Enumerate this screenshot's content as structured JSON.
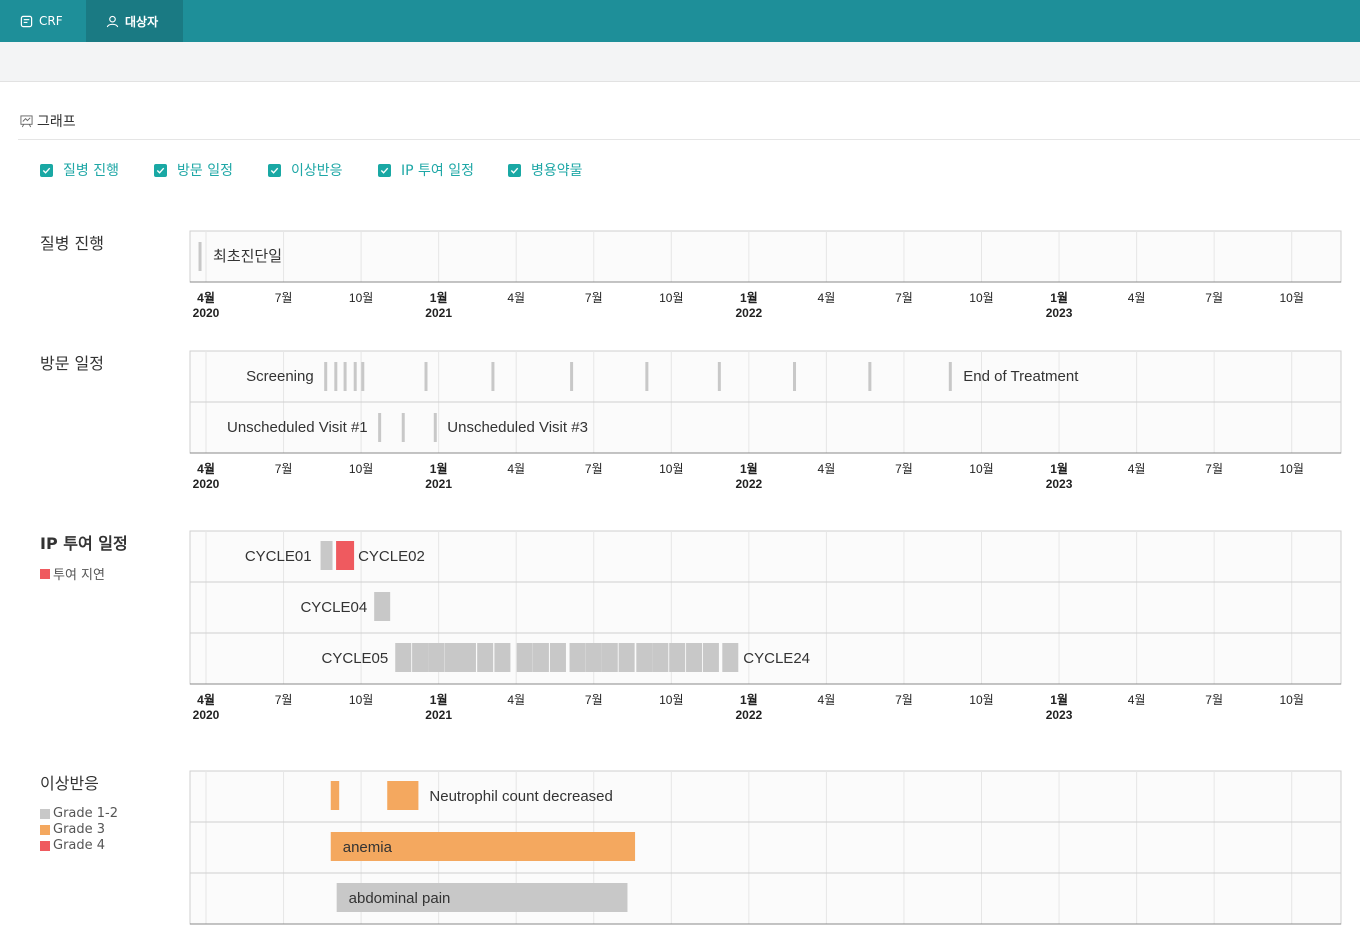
{
  "tabs": [
    {
      "label": "CRF",
      "icon": "form-icon"
    },
    {
      "label": "대상자",
      "icon": "user-icon",
      "active": true
    }
  ],
  "section": {
    "title": "그래프",
    "icon": "chart-icon"
  },
  "filters": [
    {
      "label": "질병 진행",
      "checked": true
    },
    {
      "label": "방문 일정",
      "checked": true
    },
    {
      "label": "이상반응",
      "checked": true
    },
    {
      "label": "IP 투여 일정",
      "checked": true
    },
    {
      "label": "병용약물",
      "checked": true
    }
  ],
  "colors": {
    "accent": "#1e8f99",
    "gray": "#c8c8c8",
    "orange": "#f4a85f",
    "red": "#ef5a5f"
  },
  "axis_ticks": [
    {
      "month": "4월",
      "year": "2020"
    },
    {
      "month": "7월"
    },
    {
      "month": "10월"
    },
    {
      "month": "1월",
      "year": "2021"
    },
    {
      "month": "4월"
    },
    {
      "month": "7월"
    },
    {
      "month": "10월"
    },
    {
      "month": "1월",
      "year": "2022"
    },
    {
      "month": "4월"
    },
    {
      "month": "7월"
    },
    {
      "month": "10월"
    },
    {
      "month": "1월",
      "year": "2023"
    },
    {
      "month": "4월"
    },
    {
      "month": "7월"
    },
    {
      "month": "10월"
    }
  ],
  "disease": {
    "title": "질병 진행",
    "events": [
      {
        "date": "2020-03-25",
        "label": "최초진단일"
      }
    ]
  },
  "visits": {
    "title": "방문 일정",
    "scheduled": {
      "first_label": "Screening",
      "last_label": "End of Treatment",
      "dates": [
        "2020-08-20",
        "2020-09-01",
        "2020-09-12",
        "2020-09-24",
        "2020-10-03",
        "2020-12-17",
        "2021-03-05",
        "2021-06-05",
        "2021-09-02",
        "2021-11-27",
        "2022-02-23",
        "2022-05-22",
        "2022-08-25"
      ]
    },
    "unscheduled": [
      {
        "date": "2020-10-23",
        "label": "Unscheduled Visit #1"
      },
      {
        "date": "2020-11-20"
      },
      {
        "date": "2020-12-28",
        "label": "Unscheduled Visit #3"
      }
    ]
  },
  "ip": {
    "title": "IP 투여 일정",
    "legend": {
      "label": "투여 지연",
      "color": "#ef5a5f"
    },
    "rows": [
      {
        "first_label": "CYCLE01",
        "last_label": "CYCLE02",
        "doses": [
          {
            "date": "2020-08-21",
            "delayed": false
          },
          {
            "date": "2020-09-12",
            "delayed": true
          }
        ]
      },
      {
        "first_label": "CYCLE04",
        "doses": [
          {
            "date": "2020-10-26",
            "delayed": false
          }
        ]
      },
      {
        "first_label": "CYCLE05",
        "last_label": "CYCLE24",
        "doses": [
          {
            "date": "2020-11-20"
          },
          {
            "date": "2020-12-10"
          },
          {
            "date": "2020-12-29"
          },
          {
            "date": "2021-01-17"
          },
          {
            "date": "2021-02-04"
          },
          {
            "date": "2021-02-24"
          },
          {
            "date": "2021-03-16"
          },
          {
            "date": "2021-04-11"
          },
          {
            "date": "2021-04-30"
          },
          {
            "date": "2021-05-20"
          },
          {
            "date": "2021-06-12"
          },
          {
            "date": "2021-07-01"
          },
          {
            "date": "2021-07-20"
          },
          {
            "date": "2021-08-09"
          },
          {
            "date": "2021-08-30"
          },
          {
            "date": "2021-09-18"
          },
          {
            "date": "2021-10-08"
          },
          {
            "date": "2021-10-28"
          },
          {
            "date": "2021-11-17"
          },
          {
            "date": "2021-12-10"
          }
        ]
      }
    ]
  },
  "ae": {
    "title": "이상반응",
    "legend": [
      {
        "label": "Grade 1-2",
        "color": "#c8c8c8"
      },
      {
        "label": "Grade 3",
        "color": "#f4a85f"
      },
      {
        "label": "Grade 4",
        "color": "#ef5a5f"
      }
    ],
    "rows": [
      {
        "segments": [
          {
            "start": "2020-08-26",
            "end": "2020-09-05",
            "grade": 3
          },
          {
            "start": "2020-11-01",
            "end": "2020-12-08",
            "grade": 3,
            "label": "Neutrophil count decreased",
            "label_outside": true
          }
        ]
      },
      {
        "segments": [
          {
            "start": "2020-08-26",
            "end": "2021-08-19",
            "grade": 3,
            "label": "anemia"
          }
        ]
      },
      {
        "segments": [
          {
            "start": "2020-09-02",
            "end": "2021-08-10",
            "grade": 2,
            "label": "abdominal pain"
          }
        ]
      }
    ]
  }
}
